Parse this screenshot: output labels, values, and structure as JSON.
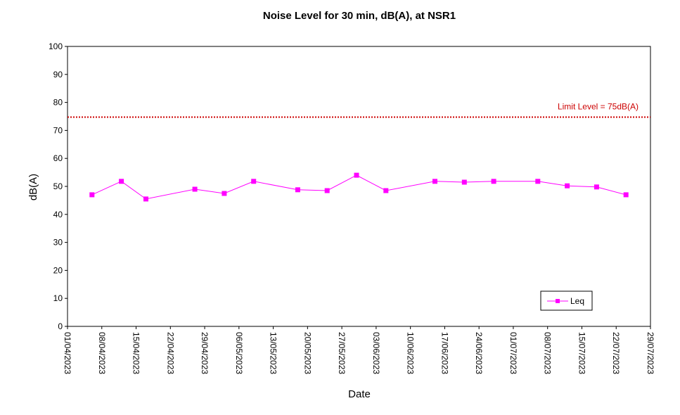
{
  "chart_data": {
    "type": "line",
    "title": "Noise Level for 30 min, dB(A), at NSR1",
    "xlabel": "Date",
    "ylabel": "dB(A)",
    "ylim": [
      0,
      100
    ],
    "yticks": [
      0,
      10,
      20,
      30,
      40,
      50,
      60,
      70,
      80,
      90,
      100
    ],
    "xlim": [
      "2023-04-01",
      "2023-07-29"
    ],
    "xtick_labels": [
      "01/04/2023",
      "08/04/2023",
      "15/04/2023",
      "22/04/2023",
      "29/04/2023",
      "06/05/2023",
      "13/05/2023",
      "20/05/2023",
      "27/05/2023",
      "03/06/2023",
      "10/06/2023",
      "17/06/2023",
      "24/06/2023",
      "01/07/2023",
      "08/07/2023",
      "15/07/2023",
      "22/07/2023",
      "29/07/2023"
    ],
    "grid": false,
    "legend_position": "bottom-right",
    "limit": {
      "value": 75,
      "label": "Limit Level  = 75dB(A)",
      "color": "#cc0000"
    },
    "series": [
      {
        "name": "Leq",
        "color": "#ff00ff",
        "points": [
          {
            "x": "2023-04-06",
            "y": 47.0
          },
          {
            "x": "2023-04-12",
            "y": 51.8
          },
          {
            "x": "2023-04-17",
            "y": 45.5
          },
          {
            "x": "2023-04-27",
            "y": 49.0
          },
          {
            "x": "2023-05-03",
            "y": 47.5
          },
          {
            "x": "2023-05-09",
            "y": 51.8
          },
          {
            "x": "2023-05-18",
            "y": 48.8
          },
          {
            "x": "2023-05-24",
            "y": 48.5
          },
          {
            "x": "2023-05-30",
            "y": 54.0
          },
          {
            "x": "2023-06-05",
            "y": 48.5
          },
          {
            "x": "2023-06-15",
            "y": 51.8
          },
          {
            "x": "2023-06-21",
            "y": 51.5
          },
          {
            "x": "2023-06-27",
            "y": 51.8
          },
          {
            "x": "2023-07-06",
            "y": 51.8
          },
          {
            "x": "2023-07-12",
            "y": 50.2
          },
          {
            "x": "2023-07-18",
            "y": 49.8
          },
          {
            "x": "2023-07-24",
            "y": 47.0
          }
        ]
      }
    ]
  }
}
